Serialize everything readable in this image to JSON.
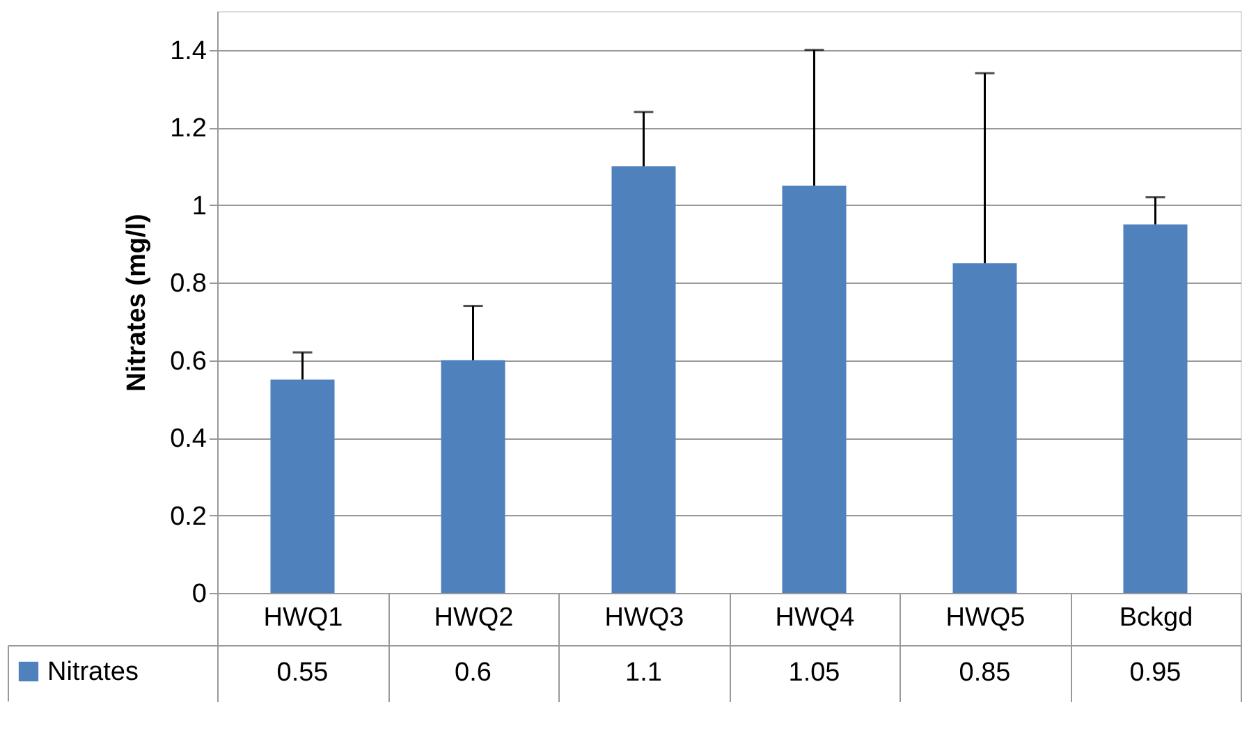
{
  "chart_data": {
    "type": "bar",
    "ylabel": "Nitrates (mg/l)",
    "categories": [
      "HWQ1",
      "HWQ2",
      "HWQ3",
      "HWQ4",
      "HWQ5",
      "Bckgd"
    ],
    "series": [
      {
        "name": "Nitrates",
        "color": "#4f81bd",
        "values": [
          0.55,
          0.6,
          1.1,
          1.05,
          0.85,
          0.95
        ],
        "errors": [
          [
            0.55,
            0.62
          ],
          [
            0.6,
            0.74
          ],
          [
            1.1,
            1.24
          ],
          [
            1.05,
            1.4
          ],
          [
            0.85,
            1.34
          ],
          [
            0.95,
            1.02
          ]
        ]
      }
    ],
    "ylim": [
      0,
      1.5
    ],
    "yticks": [
      0,
      0.2,
      0.4,
      0.6,
      0.8,
      1,
      1.2,
      1.4
    ],
    "grid": "y",
    "legend": "bottom left",
    "data_labels": true
  }
}
